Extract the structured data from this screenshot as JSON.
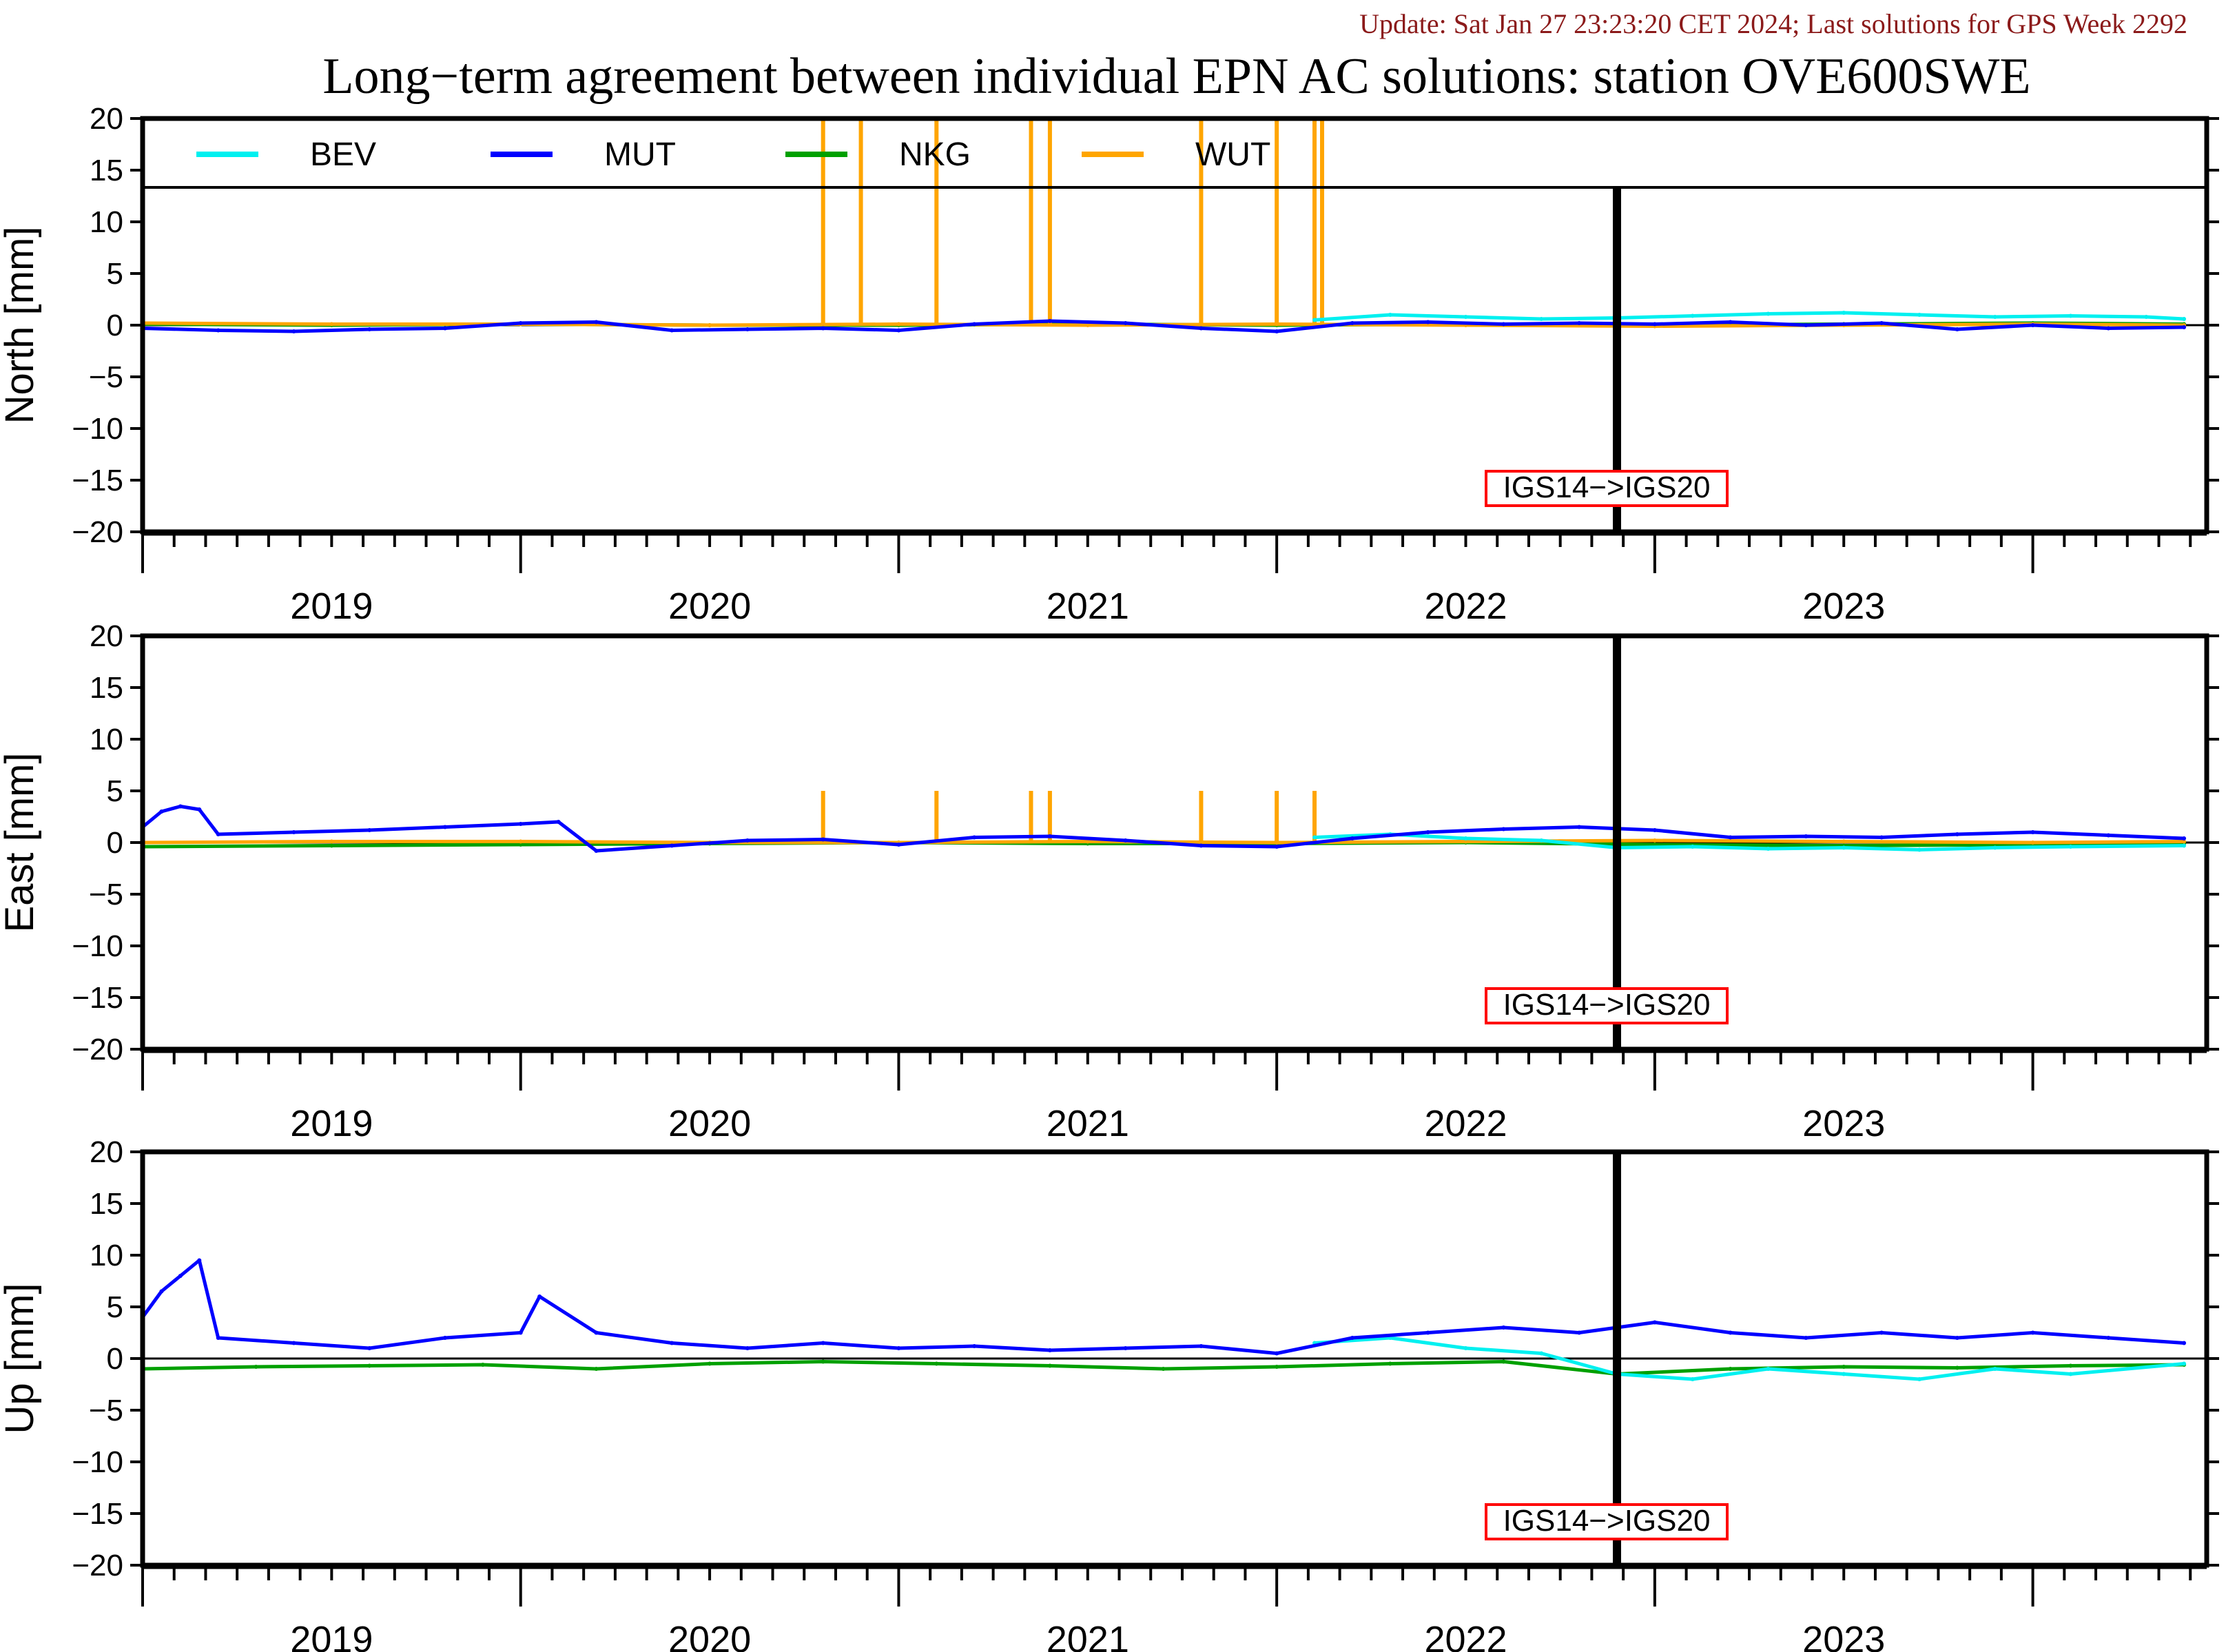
{
  "update_text": "Update: Sat Jan 27 23:23:20 CET 2024; Last solutions for GPS Week 2292",
  "title": "Long−term agreement between individual EPN AC solutions: station OVE600SWE",
  "colors": {
    "BEV": "#00f0f0",
    "MUT": "#0000ff",
    "NKG": "#00a000",
    "WUT": "#ffa500",
    "update_text": "#8b1a1a",
    "frame_box": "#ff0000"
  },
  "chart_data": {
    "type": "line",
    "x_axis": {
      "range": [
        2018.5,
        2023.96
      ],
      "tick_labels": [
        "2019",
        "2020",
        "2021",
        "2022",
        "2023"
      ],
      "tick_label_positions": [
        2019.0,
        2020.0,
        2021.0,
        2022.0,
        2023.0
      ]
    },
    "legend": {
      "placement": "top-inside-first-panel",
      "entries": [
        "BEV",
        "MUT",
        "NKG",
        "WUT"
      ]
    },
    "frame_change": {
      "label": "IGS14−>IGS20",
      "x": 2022.4
    },
    "panels": [
      {
        "name": "North",
        "ylabel": "North [mm]",
        "ylim": [
          -20,
          20
        ],
        "yticks": [
          "20",
          "15",
          "10",
          "5",
          "0",
          "−5",
          "−10",
          "−15",
          "−20"
        ],
        "series": [
          {
            "name": "MUT",
            "x": [
              2018.5,
              2018.7,
              2018.9,
              2019.1,
              2019.3,
              2019.5,
              2019.7,
              2019.9,
              2020.1,
              2020.3,
              2020.5,
              2020.7,
              2020.9,
              2021.1,
              2021.3,
              2021.5,
              2021.7,
              2021.9,
              2022.1,
              2022.3,
              2022.5,
              2022.7,
              2022.9,
              2023.1,
              2023.3,
              2023.5,
              2023.7,
              2023.9
            ],
            "y": [
              -0.3,
              -0.5,
              -0.6,
              -0.4,
              -0.3,
              0.2,
              0.3,
              -0.5,
              -0.4,
              -0.3,
              -0.5,
              0.1,
              0.4,
              0.2,
              -0.3,
              -0.6,
              0.2,
              0.3,
              0.1,
              0.2,
              0.1,
              0.3,
              0.0,
              0.2,
              -0.4,
              0.0,
              -0.3,
              -0.2
            ]
          },
          {
            "name": "BEV",
            "x": [
              2021.6,
              2021.8,
              2022.0,
              2022.2,
              2022.4,
              2022.6,
              2022.8,
              2023.0,
              2023.2,
              2023.4,
              2023.6,
              2023.8,
              2023.9
            ],
            "y": [
              0.5,
              1.0,
              0.8,
              0.6,
              0.7,
              0.9,
              1.1,
              1.2,
              1.0,
              0.8,
              0.9,
              0.8,
              0.6
            ]
          },
          {
            "name": "NKG",
            "x": [
              2018.5,
              2019.0,
              2019.5,
              2020.0,
              2020.5,
              2021.0,
              2021.5,
              2022.0,
              2022.5,
              2023.0,
              2023.5,
              2023.9
            ],
            "y": [
              0.1,
              0.0,
              0.1,
              0.0,
              0.0,
              0.1,
              0.0,
              0.1,
              0.0,
              0.1,
              0.2,
              0.1
            ]
          },
          {
            "name": "WUT",
            "x": [
              2018.5,
              2019.0,
              2019.5,
              2020.0,
              2020.5,
              2021.0,
              2021.5,
              2022.0,
              2022.5,
              2023.0,
              2023.5,
              2023.9
            ],
            "y": [
              0.2,
              0.1,
              0.1,
              0.0,
              0.1,
              0.0,
              0.1,
              0.0,
              -0.1,
              0.0,
              0.1,
              0.0
            ],
            "spikes_x": [
              2020.3,
              2020.4,
              2020.6,
              2020.85,
              2020.9,
              2021.3,
              2021.5,
              2021.6,
              2021.62
            ]
          }
        ]
      },
      {
        "name": "East",
        "ylabel": "East [mm]",
        "ylim": [
          -20,
          20
        ],
        "yticks": [
          "20",
          "15",
          "10",
          "5",
          "0",
          "−5",
          "−10",
          "−15",
          "−20"
        ],
        "series": [
          {
            "name": "MUT",
            "x": [
              2018.5,
              2018.55,
              2018.6,
              2018.65,
              2018.7,
              2018.9,
              2019.1,
              2019.3,
              2019.5,
              2019.6,
              2019.7,
              2019.9,
              2020.1,
              2020.3,
              2020.5,
              2020.7,
              2020.9,
              2021.1,
              2021.3,
              2021.5,
              2021.7,
              2021.9,
              2022.1,
              2022.3,
              2022.5,
              2022.7,
              2022.9,
              2023.1,
              2023.3,
              2023.5,
              2023.7,
              2023.9
            ],
            "y": [
              1.5,
              3.0,
              3.5,
              3.2,
              0.8,
              1.0,
              1.2,
              1.5,
              1.8,
              2.0,
              -0.8,
              -0.3,
              0.2,
              0.3,
              -0.2,
              0.5,
              0.6,
              0.2,
              -0.3,
              -0.4,
              0.4,
              1.0,
              1.3,
              1.5,
              1.2,
              0.5,
              0.6,
              0.5,
              0.8,
              1.0,
              0.7,
              0.4
            ]
          },
          {
            "name": "BEV",
            "x": [
              2021.6,
              2021.8,
              2022.0,
              2022.2,
              2022.4,
              2022.6,
              2022.8,
              2023.0,
              2023.2,
              2023.4,
              2023.6,
              2023.9
            ],
            "y": [
              0.5,
              0.8,
              0.4,
              0.2,
              -0.5,
              -0.4,
              -0.6,
              -0.5,
              -0.7,
              -0.5,
              -0.4,
              -0.3
            ]
          },
          {
            "name": "NKG",
            "x": [
              2018.5,
              2019.0,
              2019.5,
              2020.0,
              2020.5,
              2021.0,
              2021.5,
              2022.0,
              2022.5,
              2023.0,
              2023.5,
              2023.9
            ],
            "y": [
              -0.4,
              -0.3,
              -0.2,
              -0.1,
              0.0,
              -0.1,
              -0.1,
              0.0,
              -0.2,
              -0.3,
              -0.2,
              -0.1
            ]
          },
          {
            "name": "WUT",
            "x": [
              2018.5,
              2019.0,
              2019.5,
              2020.0,
              2020.5,
              2021.0,
              2021.5,
              2022.0,
              2022.5,
              2023.0,
              2023.5,
              2023.9
            ],
            "y": [
              0.0,
              0.1,
              0.1,
              0.0,
              0.0,
              0.1,
              0.0,
              0.1,
              0.2,
              0.1,
              0.0,
              0.1
            ],
            "spikes_x": [
              2020.3,
              2020.6,
              2020.85,
              2020.9,
              2021.3,
              2021.5,
              2021.6
            ]
          }
        ]
      },
      {
        "name": "Up",
        "ylabel": "Up [mm]",
        "ylim": [
          -20,
          20
        ],
        "yticks": [
          "20",
          "15",
          "10",
          "5",
          "0",
          "−5",
          "−10",
          "−15",
          "−20"
        ],
        "series": [
          {
            "name": "MUT",
            "x": [
              2018.5,
              2018.55,
              2018.6,
              2018.65,
              2018.7,
              2018.9,
              2019.1,
              2019.3,
              2019.5,
              2019.55,
              2019.7,
              2019.9,
              2020.1,
              2020.3,
              2020.5,
              2020.7,
              2020.9,
              2021.1,
              2021.3,
              2021.5,
              2021.7,
              2021.9,
              2022.1,
              2022.3,
              2022.5,
              2022.7,
              2022.9,
              2023.1,
              2023.3,
              2023.5,
              2023.7,
              2023.9
            ],
            "y": [
              4.0,
              6.5,
              8.0,
              9.5,
              2.0,
              1.5,
              1.0,
              2.0,
              2.5,
              6.0,
              2.5,
              1.5,
              1.0,
              1.5,
              1.0,
              1.2,
              0.8,
              1.0,
              1.2,
              0.5,
              2.0,
              2.5,
              3.0,
              2.5,
              3.5,
              2.5,
              2.0,
              2.5,
              2.0,
              2.5,
              2.0,
              1.5
            ]
          },
          {
            "name": "BEV",
            "x": [
              2021.6,
              2021.8,
              2022.0,
              2022.2,
              2022.4,
              2022.6,
              2022.8,
              2023.0,
              2023.2,
              2023.4,
              2023.6,
              2023.9
            ],
            "y": [
              1.5,
              2.0,
              1.0,
              0.5,
              -1.5,
              -2.0,
              -1.0,
              -1.5,
              -2.0,
              -1.0,
              -1.5,
              -0.5
            ]
          },
          {
            "name": "NKG",
            "x": [
              2018.5,
              2018.8,
              2019.1,
              2019.4,
              2019.7,
              2020.0,
              2020.3,
              2020.6,
              2020.9,
              2021.2,
              2021.5,
              2021.8,
              2022.1,
              2022.4,
              2022.7,
              2023.0,
              2023.3,
              2023.6,
              2023.9
            ],
            "y": [
              -1.0,
              -0.8,
              -0.7,
              -0.6,
              -1.0,
              -0.5,
              -0.3,
              -0.5,
              -0.7,
              -1.0,
              -0.8,
              -0.5,
              -0.3,
              -1.5,
              -1.0,
              -0.8,
              -0.9,
              -0.7,
              -0.6
            ]
          },
          {
            "name": "WUT",
            "x": [],
            "y": []
          }
        ]
      }
    ]
  }
}
